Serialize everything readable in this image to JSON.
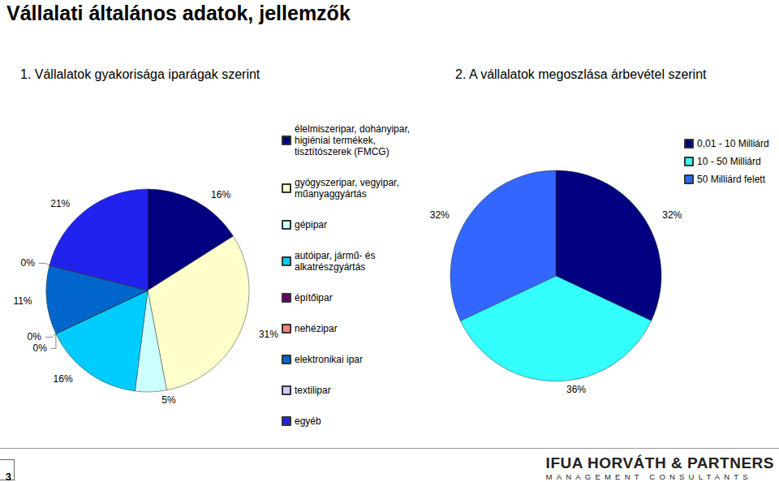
{
  "page": {
    "title": "Vállalati általános adatok, jellemzők",
    "page_number": 3,
    "logo": "IFUA HORVÁTH & PARTNERS",
    "logo_subtitle": "MANAGEMENT CONSULTANTS"
  },
  "chart_data": [
    {
      "type": "pie",
      "title": "1. Vállalatok gyakorisága iparágak szerint",
      "categories": [
        "élelmiszeripar, dohányipar, higiéniai termékek, tisztítószerek (FMCG)",
        "gyógyszeripar, vegyipar, műanyaggyártás",
        "gépipar",
        "autóipar, jármű- és alkatrészgyártás",
        "építőipar",
        "nehézipar",
        "elektronikai ipar",
        "textilipar",
        "egyéb"
      ],
      "values": [
        16,
        31,
        5,
        16,
        0,
        0,
        11,
        0,
        21
      ],
      "value_labels": [
        "16%",
        "31%",
        "5%",
        "16%",
        "0%",
        "0%",
        "11%",
        "0%",
        "21%"
      ],
      "colors": [
        "#000080",
        "#FFFFCC",
        "#CCFFFF",
        "#00CCFF",
        "#660066",
        "#FF8080",
        "#0066CC",
        "#CCCCFF",
        "#2222EE"
      ],
      "data_labels": true,
      "legend": "right"
    },
    {
      "type": "pie",
      "title": "2. A vállalatok megoszlása árbevétel szerint",
      "categories": [
        "0,01 - 10 Milliárd",
        "10 - 50 Milliárd",
        "50 Milliárd felett"
      ],
      "values": [
        32,
        36,
        32
      ],
      "value_labels": [
        "32%",
        "36%",
        "32%"
      ],
      "colors": [
        "#000080",
        "#33FFFF",
        "#3366FF"
      ],
      "data_labels": true,
      "legend": "top-right"
    }
  ]
}
